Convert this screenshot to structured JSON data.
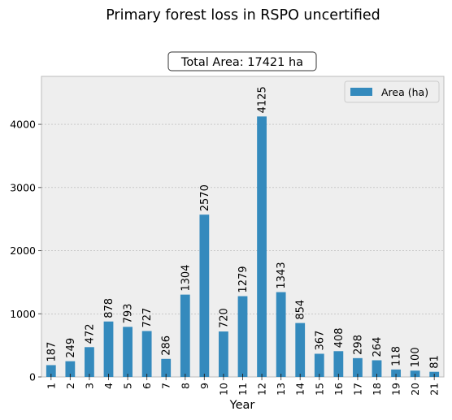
{
  "chart_data": {
    "type": "bar",
    "title": "Primary forest loss in RSPO uncertified",
    "annotation": "Total Area: 17421 ha",
    "xlabel": "Year",
    "ylabel": "",
    "categories": [
      "1",
      "2",
      "3",
      "4",
      "5",
      "6",
      "7",
      "8",
      "9",
      "10",
      "11",
      "12",
      "13",
      "14",
      "15",
      "16",
      "17",
      "18",
      "19",
      "20",
      "21"
    ],
    "series": [
      {
        "name": "Area (ha)",
        "values": [
          187,
          249,
          472,
          878,
          793,
          727,
          286,
          1304,
          2570,
          720,
          1279,
          4125,
          1343,
          854,
          367,
          408,
          298,
          264,
          118,
          100,
          81
        ]
      }
    ],
    "ylim": [
      0,
      4760
    ],
    "yticks": [
      0,
      1000,
      2000,
      3000,
      4000
    ],
    "grid": true,
    "legend_position": "upper right",
    "colors": {
      "bar": "#348abd",
      "background": "#eeeeee",
      "grid": "#b2b2b2"
    }
  }
}
